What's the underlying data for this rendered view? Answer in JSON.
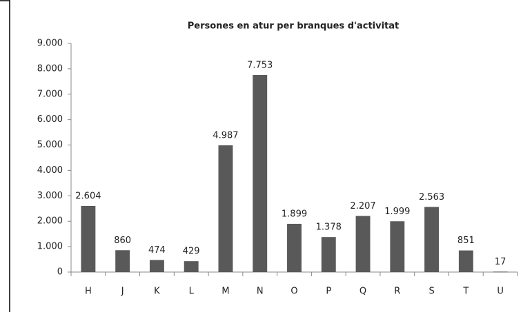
{
  "chart_data": {
    "type": "bar",
    "title": "Persones en atur per branques d'activitat",
    "categories": [
      "H",
      "J",
      "K",
      "L",
      "M",
      "N",
      "O",
      "P",
      "Q",
      "R",
      "S",
      "T",
      "U"
    ],
    "values": [
      2604,
      860,
      474,
      429,
      4987,
      7753,
      1899,
      1378,
      2207,
      1999,
      2563,
      851,
      17
    ],
    "value_labels": [
      "2.604",
      "860",
      "474",
      "429",
      "4.987",
      "7.753",
      "1.899",
      "1.378",
      "2.207",
      "1.999",
      "2.563",
      "851",
      "17"
    ],
    "color": "#595959",
    "ylim": [
      0,
      9000
    ],
    "yticks": [
      0,
      {
        "value": 1000,
        "label": "1.000"
      },
      {
        "value": 2000,
        "label": "2.000"
      },
      {
        "value": 3000,
        "label": "3.000"
      },
      {
        "value": 4000,
        "label": "4.000"
      },
      {
        "value": 5000,
        "label": "5.000"
      },
      {
        "value": 6000,
        "label": "6.000"
      },
      {
        "value": 7000,
        "label": "7.000"
      },
      {
        "value": 8000,
        "label": "8.000"
      },
      {
        "value": 9000,
        "label": "9.000"
      }
    ],
    "grid": false
  }
}
